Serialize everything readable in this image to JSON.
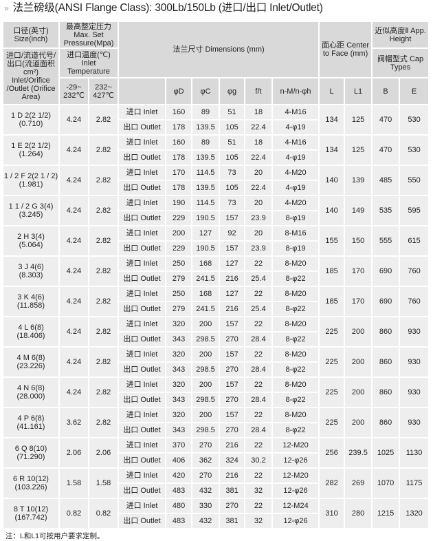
{
  "title": {
    "prefix": "»",
    "text": "法兰磅级(ANSI  Flange  Class): 300Lb/150Lb   (进口/出口  Inlet/Outlet)"
  },
  "header": {
    "size": "口径(英寸) Size(inch)",
    "pressure": "最高整定压力 Max. Set Pressure(Mpa)",
    "dimensions": "法兰尺寸 Dimensions (mm)",
    "center_to_face": "面心距 Center to Face (mm)",
    "height": "近似高度Ⅱ App. Height",
    "orifice": "进口/流道代号/出口(流道面积cm²) Inlet/Orifice /Outlet (Orifice Area)",
    "temperature": "进口温度(℃) Inlet Temperature",
    "cap": "阀帽型式 Cap Types",
    "temp_low": "-29~ 232℃",
    "temp_high": "232~ 427℃",
    "cols": [
      "φD",
      "φC",
      "φg",
      "f/t",
      "n-M/n-φh",
      "L",
      "L1",
      "B",
      "E"
    ]
  },
  "side_labels": {
    "inlet": "进口 Inlet",
    "outlet": "出口 Outlet"
  },
  "rows": [
    {
      "size": "1 D 2(2  1/2)",
      "area": "(0.710)",
      "p1": "4.24",
      "p2": "2.82",
      "inlet": [
        "160",
        "89",
        "51",
        "18",
        "4-M16"
      ],
      "outlet": [
        "178",
        "139.5",
        "105",
        "22.4",
        "4-φ19"
      ],
      "L": "134",
      "L1": "125",
      "B": "470",
      "E": "530"
    },
    {
      "size": "1 E 2(2  1/2)",
      "area": "(1.264)",
      "p1": "4.24",
      "p2": "2.82",
      "inlet": [
        "160",
        "89",
        "51",
        "18",
        "4-M16"
      ],
      "outlet": [
        "178",
        "139.5",
        "105",
        "22.4",
        "4-φ19"
      ],
      "L": "134",
      "L1": "125",
      "B": "470",
      "E": "530"
    },
    {
      "size": "1 / 2 F 2(2  1 / 2)",
      "area": "(1.981)",
      "p1": "4.24",
      "p2": "2.82",
      "inlet": [
        "170",
        "114.5",
        "73",
        "20",
        "4-M20"
      ],
      "outlet": [
        "178",
        "139.5",
        "105",
        "22.4",
        "4-φ19"
      ],
      "L": "140",
      "L1": "139",
      "B": "485",
      "E": "550"
    },
    {
      "size": "1  1 / 2 G 3(4)",
      "area": "(3.245)",
      "p1": "4.24",
      "p2": "2.82",
      "inlet": [
        "190",
        "114.5",
        "73",
        "20",
        "4-M20"
      ],
      "outlet": [
        "229",
        "190.5",
        "157",
        "23.9",
        "8-φ19"
      ],
      "L": "140",
      "L1": "149",
      "B": "535",
      "E": "595"
    },
    {
      "size": "2 H 3(4)",
      "area": "(5.064)",
      "p1": "4.24",
      "p2": "2.82",
      "inlet": [
        "200",
        "127",
        "92",
        "20",
        "8-M16"
      ],
      "outlet": [
        "229",
        "190.5",
        "157",
        "23.9",
        "8-φ19"
      ],
      "L": "155",
      "L1": "150",
      "B": "555",
      "E": "615"
    },
    {
      "size": "3 J 4(6)",
      "area": "(8.303)",
      "p1": "4.24",
      "p2": "2.82",
      "inlet": [
        "250",
        "168",
        "127",
        "22",
        "8-M20"
      ],
      "outlet": [
        "279",
        "241.5",
        "216",
        "25.4",
        "8-φ22"
      ],
      "L": "185",
      "L1": "170",
      "B": "690",
      "E": "760"
    },
    {
      "size": "3 K 4(6)",
      "area": "(11.858)",
      "p1": "4.24",
      "p2": "2.82",
      "inlet": [
        "250",
        "168",
        "127",
        "22",
        "8-M20"
      ],
      "outlet": [
        "279",
        "241.5",
        "216",
        "25.4",
        "8-φ22"
      ],
      "L": "185",
      "L1": "170",
      "B": "690",
      "E": "760"
    },
    {
      "size": "4 L 6(8)",
      "area": "(18.406)",
      "p1": "4.24",
      "p2": "2.82",
      "inlet": [
        "320",
        "200",
        "157",
        "22",
        "8-M20"
      ],
      "outlet": [
        "343",
        "298.5",
        "270",
        "28.4",
        "8-φ22"
      ],
      "L": "225",
      "L1": "200",
      "B": "860",
      "E": "930"
    },
    {
      "size": "4 M 6(8)",
      "area": "(23.226)",
      "p1": "4.24",
      "p2": "2.82",
      "inlet": [
        "320",
        "200",
        "157",
        "22",
        "8-M20"
      ],
      "outlet": [
        "343",
        "298.5",
        "270",
        "28.4",
        "8-φ22"
      ],
      "L": "225",
      "L1": "200",
      "B": "860",
      "E": "930"
    },
    {
      "size": "4 N 6(8)",
      "area": "(28.000)",
      "p1": "4.24",
      "p2": "2.82",
      "inlet": [
        "320",
        "200",
        "157",
        "22",
        "8-M20"
      ],
      "outlet": [
        "343",
        "298.5",
        "270",
        "28.4",
        "8-φ22"
      ],
      "L": "225",
      "L1": "200",
      "B": "860",
      "E": "930"
    },
    {
      "size": "4 P 6(8)",
      "area": "(41.161)",
      "p1": "3.62",
      "p2": "2.82",
      "inlet": [
        "320",
        "200",
        "157",
        "22",
        "8-M20"
      ],
      "outlet": [
        "343",
        "298.5",
        "270",
        "28.4",
        "8-φ22"
      ],
      "L": "225",
      "L1": "200",
      "B": "860",
      "E": "930"
    },
    {
      "size": "6 Q 8(10)",
      "area": "(71.290)",
      "p1": "2.06",
      "p2": "2.06",
      "inlet": [
        "370",
        "270",
        "216",
        "22",
        "12-M20"
      ],
      "outlet": [
        "406",
        "362",
        "324",
        "30.2",
        "12-φ26"
      ],
      "L": "256",
      "L1": "239.5",
      "B": "1025",
      "E": "1130"
    },
    {
      "size": "6 R 10(12)",
      "area": "(103.226)",
      "p1": "1.58",
      "p2": "1.58",
      "inlet": [
        "420",
        "270",
        "216",
        "22",
        "12-M20"
      ],
      "outlet": [
        "483",
        "432",
        "381",
        "32",
        "12-φ26"
      ],
      "L": "282",
      "L1": "269",
      "B": "1070",
      "E": "1175"
    },
    {
      "size": "8 T 10(12)",
      "area": "(167.742)",
      "p1": "0.82",
      "p2": "0.82",
      "inlet": [
        "480",
        "330",
        "270",
        "22",
        "12-M24"
      ],
      "outlet": [
        "483",
        "432",
        "381",
        "32",
        "12-φ26"
      ],
      "L": "310",
      "L1": "280",
      "B": "1215",
      "E": "1320"
    }
  ],
  "note": "注：L和L1可按用户要求定制。"
}
